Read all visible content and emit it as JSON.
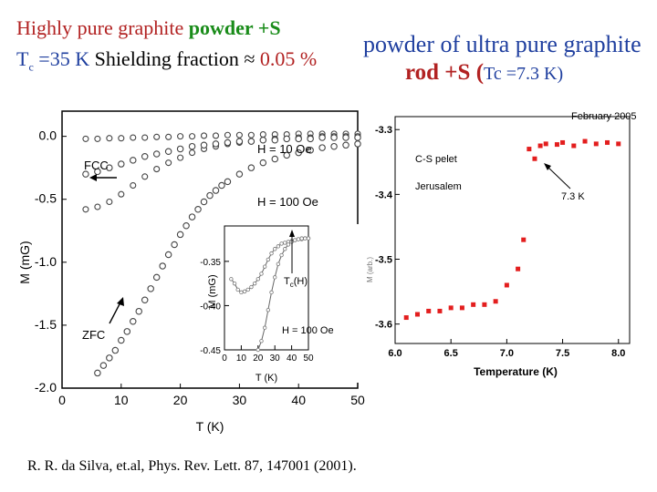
{
  "header": {
    "line1_prefix": "Highly pure graphite ",
    "line1_emph": "powder +S",
    "line2_prefix": "T",
    "line2_sub": "c",
    "line2_mid": " =35 K  ",
    "line2_black": "Shielding fraction ≈ ",
    "line2_value": "0.05 %",
    "right1": "powder of ultra pure graphite",
    "right2_prefix": "rod +S (",
    "right2_small": "Tc =7.3 K)"
  },
  "reference": "R. R. da Silva, et.al, Phys. Rev. Lett. 87, 147001 (2001).",
  "chart_data": [
    {
      "type": "scatter",
      "name": "main",
      "xlabel": "T (K)",
      "ylabel": "M (mG)",
      "xlim": [
        0,
        50
      ],
      "ylim": [
        -2.0,
        0.2
      ],
      "xticks": [
        0,
        10,
        20,
        30,
        40,
        50
      ],
      "yticks": [
        0.0,
        -0.5,
        -1.0,
        -1.5,
        -2.0
      ],
      "ytick_labels": [
        "0.0",
        "-0.5",
        "-1.0",
        "-1.5",
        "-2.0"
      ],
      "annotations": {
        "fcc": "FCC",
        "zfc": "ZFC",
        "h10": "H = 10 Oe",
        "h100": "H = 100 Oe"
      },
      "series": [
        {
          "name": "FCC H=10 Oe",
          "x": [
            4,
            6,
            8,
            10,
            12,
            14,
            16,
            18,
            20,
            22,
            24,
            26,
            28,
            30,
            32,
            34,
            36,
            38,
            40,
            42,
            44,
            46,
            48,
            50
          ],
          "y": [
            -0.02,
            -0.02,
            -0.015,
            -0.015,
            -0.01,
            -0.01,
            -0.005,
            -0.005,
            0,
            0,
            0.005,
            0.005,
            0.01,
            0.01,
            0.01,
            0.015,
            0.015,
            0.015,
            0.02,
            0.02,
            0.02,
            0.02,
            0.02,
            0.02
          ]
        },
        {
          "name": "FCC H=100 Oe",
          "x": [
            4,
            6,
            8,
            10,
            12,
            14,
            16,
            18,
            20,
            22,
            24,
            26,
            28,
            30,
            32,
            34,
            36,
            38,
            40,
            42,
            44,
            46,
            48,
            50
          ],
          "y": [
            -0.58,
            -0.56,
            -0.52,
            -0.46,
            -0.39,
            -0.32,
            -0.26,
            -0.21,
            -0.17,
            -0.13,
            -0.1,
            -0.08,
            -0.06,
            -0.05,
            -0.04,
            -0.03,
            -0.02,
            -0.02,
            -0.01,
            -0.01,
            0,
            0,
            0,
            0
          ]
        },
        {
          "name": "ZFC H=10 Oe",
          "x": [
            4,
            6,
            8,
            10,
            12,
            14,
            16,
            18,
            20,
            22,
            24,
            26,
            28,
            30,
            32,
            34,
            36,
            38,
            40,
            42,
            44,
            46,
            48,
            50
          ],
          "y": [
            -0.3,
            -0.28,
            -0.25,
            -0.22,
            -0.19,
            -0.16,
            -0.14,
            -0.12,
            -0.1,
            -0.08,
            -0.07,
            -0.06,
            -0.05,
            -0.04,
            -0.04,
            -0.03,
            -0.03,
            -0.02,
            -0.02,
            -0.02,
            -0.01,
            -0.01,
            -0.01,
            -0.01
          ]
        },
        {
          "name": "ZFC H=100 Oe",
          "x": [
            6,
            7,
            8,
            9,
            10,
            11,
            12,
            13,
            14,
            15,
            16,
            17,
            18,
            19,
            20,
            21,
            22,
            23,
            24,
            25,
            26,
            27,
            28,
            30,
            32,
            34,
            36,
            38,
            40,
            42,
            44,
            46,
            48,
            50
          ],
          "y": [
            -1.88,
            -1.82,
            -1.76,
            -1.7,
            -1.62,
            -1.55,
            -1.47,
            -1.39,
            -1.3,
            -1.21,
            -1.12,
            -1.03,
            -0.94,
            -0.86,
            -0.78,
            -0.71,
            -0.64,
            -0.58,
            -0.52,
            -0.47,
            -0.43,
            -0.39,
            -0.36,
            -0.3,
            -0.25,
            -0.21,
            -0.18,
            -0.15,
            -0.13,
            -0.11,
            -0.09,
            -0.08,
            -0.07,
            -0.06
          ]
        }
      ]
    },
    {
      "type": "line",
      "name": "inset",
      "xlabel": "T (K)",
      "ylabel": "M (mG)",
      "xlim": [
        0,
        50
      ],
      "ylim": [
        -0.45,
        -0.31
      ],
      "xticks": [
        0,
        10,
        20,
        30,
        40,
        50
      ],
      "yticks": [
        -0.35,
        -0.4,
        -0.45
      ],
      "ytick_labels": [
        "-0.35",
        "-0.40",
        "-0.45"
      ],
      "annotations": {
        "tc_main": "T",
        "tc_sub": "c",
        "tc_rest": "(H)",
        "field": "H = 100 Oe"
      },
      "series": [
        {
          "name": "FCC",
          "x": [
            4,
            6,
            8,
            10,
            12,
            14,
            16,
            18,
            20,
            22,
            24,
            26,
            28,
            30,
            32,
            34,
            36,
            38,
            40,
            42,
            44,
            46,
            48,
            50
          ],
          "y": [
            -0.37,
            -0.375,
            -0.382,
            -0.385,
            -0.384,
            -0.382,
            -0.379,
            -0.375,
            -0.37,
            -0.364,
            -0.356,
            -0.348,
            -0.341,
            -0.336,
            -0.333,
            -0.33,
            -0.329,
            -0.328,
            -0.327,
            -0.326,
            -0.325,
            -0.325,
            -0.324,
            -0.324
          ]
        },
        {
          "name": "ZFC",
          "x": [
            20,
            22,
            24,
            26,
            28,
            30,
            32,
            34,
            36,
            38,
            40,
            42,
            44,
            46,
            48,
            50
          ],
          "y": [
            -0.45,
            -0.44,
            -0.425,
            -0.405,
            -0.385,
            -0.368,
            -0.353,
            -0.343,
            -0.336,
            -0.331,
            -0.328,
            -0.326,
            -0.325,
            -0.324,
            -0.324,
            -0.324
          ]
        }
      ]
    },
    {
      "type": "scatter",
      "name": "right",
      "title": "February 2005",
      "xlabel": "Temperature (K)",
      "ylabel": "M (arb.)",
      "xlim": [
        6.0,
        8.1
      ],
      "ylim": [
        -3.63,
        -3.28
      ],
      "xticks": [
        6.0,
        6.5,
        7.0,
        7.5,
        8.0
      ],
      "xtick_labels": [
        "6.0",
        "6.5",
        "7.0",
        "7.5",
        "8.0"
      ],
      "yticks": [
        -3.3,
        -3.4,
        -3.5,
        -3.6
      ],
      "ytick_labels": [
        "-3.3",
        "-3.4",
        "-3.5",
        "-3.6"
      ],
      "annotations": {
        "sample": "C-S pelet",
        "place": "Jerusalem",
        "tc": "7.3 K"
      },
      "series": [
        {
          "name": "C-S pelet",
          "x": [
            6.1,
            6.2,
            6.3,
            6.4,
            6.5,
            6.6,
            6.7,
            6.8,
            6.9,
            7.0,
            7.1,
            7.15,
            7.2,
            7.25,
            7.3,
            7.35,
            7.45,
            7.5,
            7.6,
            7.7,
            7.8,
            7.9,
            8.0
          ],
          "y": [
            -3.59,
            -3.585,
            -3.58,
            -3.58,
            -3.575,
            -3.575,
            -3.57,
            -3.57,
            -3.565,
            -3.54,
            -3.515,
            -3.47,
            -3.33,
            -3.345,
            -3.325,
            -3.322,
            -3.323,
            -3.32,
            -3.325,
            -3.318,
            -3.322,
            -3.32,
            -3.322
          ]
        }
      ]
    }
  ]
}
